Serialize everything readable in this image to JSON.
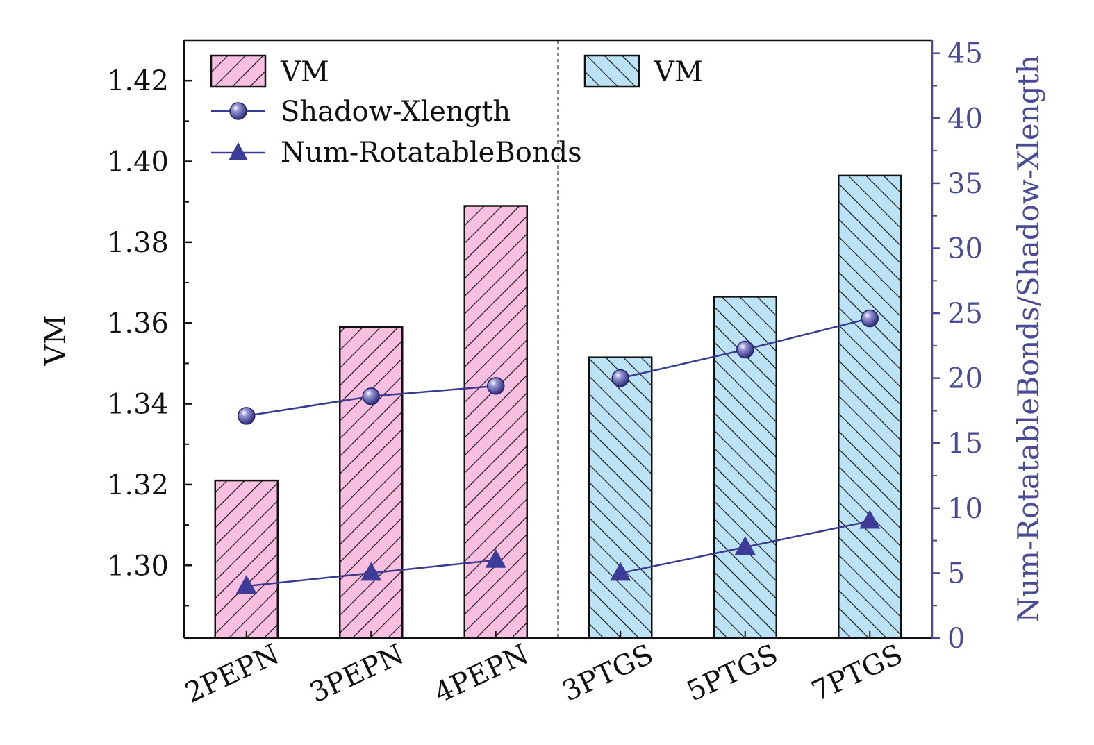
{
  "chart_data": {
    "type": "bar+line",
    "categories": [
      "2PEPN",
      "3PEPN",
      "4PEPN",
      "3PTGS",
      "5PTGS",
      "7PTGS"
    ],
    "groups": [
      {
        "name": "PEPN",
        "categories": [
          "2PEPN",
          "3PEPN",
          "4PEPN"
        ],
        "color": "#f9bfe0",
        "hatch": "forward"
      },
      {
        "name": "PTGS",
        "categories": [
          "3PTGS",
          "5PTGS",
          "7PTGS"
        ],
        "color": "#bce3f5",
        "hatch": "backward"
      }
    ],
    "bars": {
      "name": "VM",
      "axis": "left",
      "values": [
        1.321,
        1.359,
        1.389,
        1.3515,
        1.3665,
        1.3965
      ]
    },
    "series": [
      {
        "name": "Shadow-Xlength",
        "axis": "right",
        "marker": "circle",
        "values": [
          17.1,
          18.6,
          19.4,
          20.0,
          22.2,
          24.6
        ]
      },
      {
        "name": "Num-RotatableBonds",
        "axis": "right",
        "marker": "triangle",
        "values": [
          4,
          5,
          6,
          5,
          7,
          9
        ]
      }
    ],
    "ylabel": "VM",
    "ylabel_right": "Num-RotatableBonds/Shadow-Xlength",
    "ylim": [
      1.282,
      1.43
    ],
    "ylim_right": [
      0,
      46
    ],
    "yticks": [
      "1.30",
      "1.32",
      "1.34",
      "1.36",
      "1.38",
      "1.40",
      "1.42"
    ],
    "yticks_right": [
      "0",
      "5",
      "10",
      "15",
      "20",
      "25",
      "30",
      "35",
      "40",
      "45"
    ],
    "legend": {
      "left": [
        {
          "label": "VM",
          "kind": "bar-pink"
        },
        {
          "label": "Shadow-Xlength",
          "kind": "circle-line"
        },
        {
          "label": "Num-RotatableBonds",
          "kind": "triangle-line"
        }
      ],
      "right": [
        {
          "label": "VM",
          "kind": "bar-blue"
        }
      ],
      "placement": "top"
    },
    "colors": {
      "line": "#3a3a90",
      "marker": "#3d3d99",
      "right_axis": "#4a4a96",
      "pink": "#f9bfe0",
      "blue": "#bce3f5"
    }
  }
}
